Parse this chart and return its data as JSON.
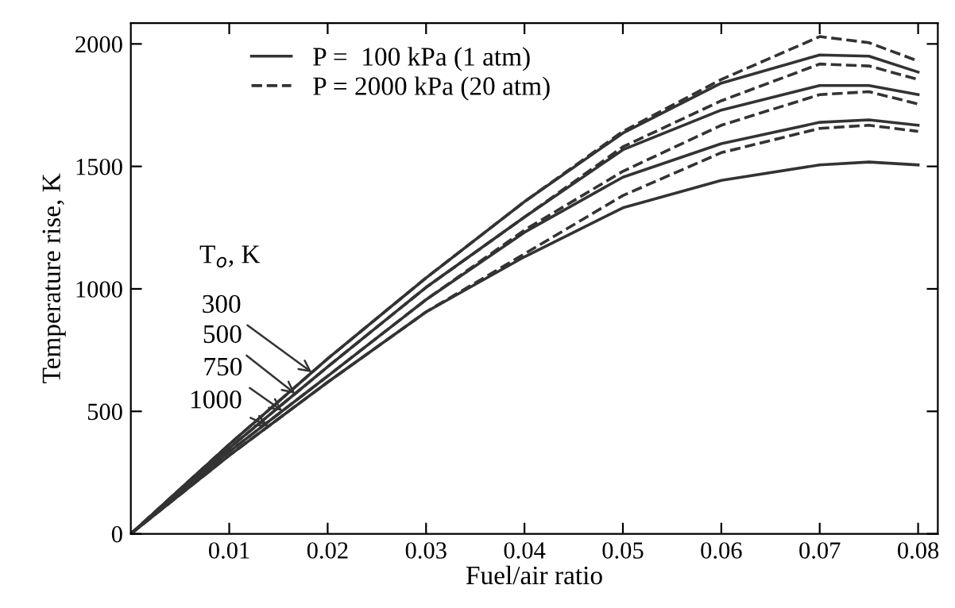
{
  "chart_data": {
    "type": "line",
    "xlabel": "Fuel/air ratio",
    "ylabel": "Temperature rise, K",
    "x": [
      0,
      0.01,
      0.02,
      0.03,
      0.04,
      0.05,
      0.06,
      0.07,
      0.075,
      0.08
    ],
    "xlim": [
      0,
      0.082
    ],
    "ylim": [
      0,
      2085
    ],
    "xticks": [
      0.01,
      0.02,
      0.03,
      0.04,
      0.05,
      0.06,
      0.07,
      0.08
    ],
    "yticks": [
      0,
      500,
      1000,
      1500,
      2000
    ],
    "grid": false,
    "legend": "top left",
    "marker": "none",
    "series": [
      {
        "name": "P =  100 kPa (1 atm)",
        "color": "#333333",
        "line_style": "solid",
        "values": [
          0,
          365,
          715,
          1045,
          1356,
          1636,
          1840,
          1955,
          1950,
          1885
        ]
      },
      {
        "color": "#333333",
        "line_style": "solid",
        "values": [
          0,
          350,
          682,
          1006,
          1293,
          1568,
          1730,
          1830,
          1830,
          1793
        ]
      },
      {
        "color": "#333333",
        "line_style": "solid",
        "values": [
          0,
          335,
          644,
          956,
          1231,
          1456,
          1593,
          1680,
          1690,
          1668
        ]
      },
      {
        "color": "#333333",
        "line_style": "solid",
        "values": [
          0,
          320,
          619,
          906,
          1131,
          1331,
          1443,
          1506,
          1518,
          1506
        ]
      },
      {
        "name": "P = 2000 kPa (20 atm)",
        "color": "#333333",
        "line_style": "dashed",
        "values": [
          0,
          365,
          715,
          1045,
          1356,
          1643,
          1855,
          2030,
          2005,
          1930
        ]
      },
      {
        "color": "#333333",
        "line_style": "dashed",
        "values": [
          0,
          350,
          682,
          1006,
          1293,
          1580,
          1768,
          1918,
          1910,
          1855
        ]
      },
      {
        "color": "#333333",
        "line_style": "dashed",
        "values": [
          0,
          335,
          644,
          956,
          1240,
          1480,
          1668,
          1793,
          1805,
          1755
        ]
      },
      {
        "color": "#333333",
        "line_style": "dashed",
        "values": [
          0,
          320,
          619,
          906,
          1143,
          1381,
          1556,
          1655,
          1668,
          1643
        ]
      }
    ],
    "annotations": [
      "T$_{o}$, K",
      {
        "text": "300",
        "x": 0.0184,
        "y": 659
      },
      {
        "text": "500",
        "x": 0.0167,
        "y": 572
      },
      {
        "text": "750",
        "x": 0.0154,
        "y": 502
      },
      {
        "text": "1000",
        "x": 0.014,
        "y": 440
      }
    ]
  }
}
